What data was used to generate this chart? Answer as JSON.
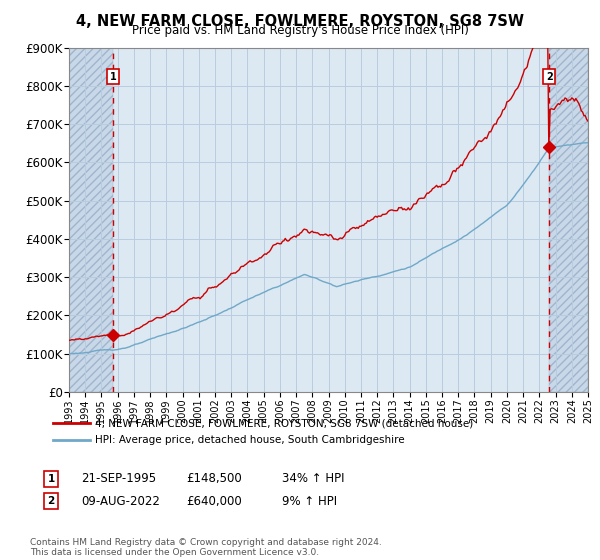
{
  "title": "4, NEW FARM CLOSE, FOWLMERE, ROYSTON, SG8 7SW",
  "subtitle": "Price paid vs. HM Land Registry's House Price Index (HPI)",
  "x_start": 1993,
  "x_end": 2025,
  "y_min": 0,
  "y_max": 900000,
  "y_ticks": [
    0,
    100000,
    200000,
    300000,
    400000,
    500000,
    600000,
    700000,
    800000,
    900000
  ],
  "y_tick_labels": [
    "£0",
    "£100K",
    "£200K",
    "£300K",
    "£400K",
    "£500K",
    "£600K",
    "£700K",
    "£800K",
    "£900K"
  ],
  "sale1_date": 1995.73,
  "sale1_price": 148500,
  "sale1_label": "1",
  "sale2_date": 2022.61,
  "sale2_price": 640000,
  "sale2_label": "2",
  "hpi_color": "#6fa8c8",
  "price_color": "#cc0000",
  "marker_color": "#cc0000",
  "dashed_line_color": "#cc0000",
  "grid_color": "#b8cce0",
  "hatch_color": "#c8d8e8",
  "background_color": "#dce8f2",
  "legend_label1": "4, NEW FARM CLOSE, FOWLMERE, ROYSTON, SG8 7SW (detached house)",
  "legend_label2": "HPI: Average price, detached house, South Cambridgeshire",
  "footer": "Contains HM Land Registry data © Crown copyright and database right 2024.\nThis data is licensed under the Open Government Licence v3.0.",
  "x_tick_years": [
    1993,
    1994,
    1995,
    1996,
    1997,
    1998,
    1999,
    2000,
    2001,
    2002,
    2003,
    2004,
    2005,
    2006,
    2007,
    2008,
    2009,
    2010,
    2011,
    2012,
    2013,
    2014,
    2015,
    2016,
    2017,
    2018,
    2019,
    2020,
    2021,
    2022,
    2023,
    2024,
    2025
  ],
  "ann1_date": "21-SEP-1995",
  "ann1_price": "£148,500",
  "ann1_hpi": "34% ↑ HPI",
  "ann2_date": "09-AUG-2022",
  "ann2_price": "£640,000",
  "ann2_hpi": "9% ↑ HPI"
}
